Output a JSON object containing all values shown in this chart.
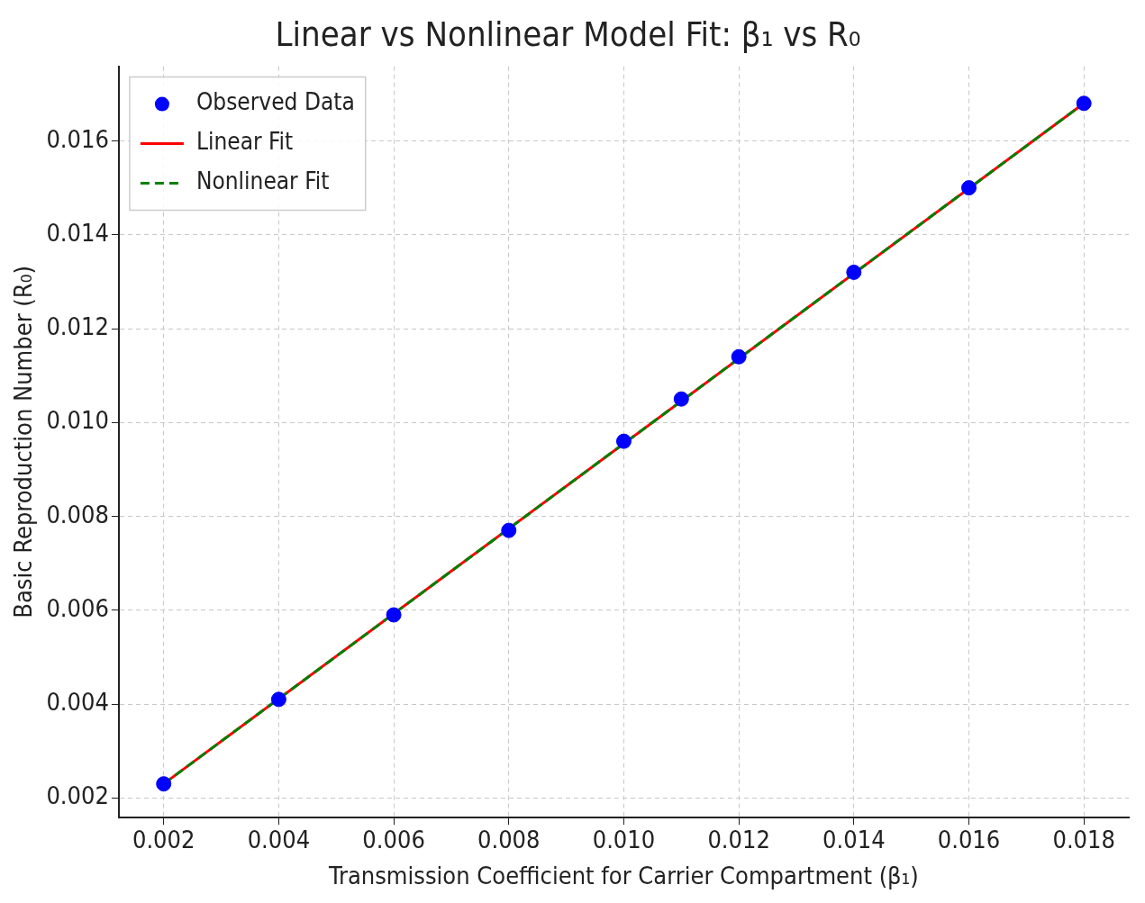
{
  "chart_data": {
    "type": "scatter",
    "title": "Linear vs Nonlinear Model Fit: β₁ vs R₀",
    "xlabel": "Transmission Coefficient for Carrier Compartment (β₁)",
    "ylabel": "Basic Reproduction Number (R₀)",
    "series": [
      {
        "name": "Observed Data",
        "color": "#0000ff",
        "marker": "circle",
        "x": [
          0.002,
          0.004,
          0.006,
          0.008,
          0.01,
          0.011,
          0.012,
          0.014,
          0.016,
          0.018
        ],
        "values": [
          0.0023,
          0.0041,
          0.0059,
          0.0077,
          0.0096,
          0.0105,
          0.0114,
          0.0132,
          0.015,
          0.0168
        ]
      },
      {
        "name": "Linear Fit",
        "type": "line",
        "color": "#ff0000",
        "line_style": "solid",
        "x": [
          0.002,
          0.018
        ],
        "values": [
          0.0023,
          0.0168
        ]
      },
      {
        "name": "Nonlinear Fit",
        "type": "line",
        "color": "#008000",
        "line_style": "dashed",
        "x": [
          0.002,
          0.018
        ],
        "values": [
          0.0023,
          0.0168
        ]
      }
    ],
    "xlim": [
      0.00122,
      0.01878
    ],
    "ylim": [
      0.00158,
      0.01759
    ],
    "xticks": [
      0.002,
      0.004,
      0.006,
      0.008,
      {
        "value": 0.01,
        "label": "0.010"
      },
      0.012,
      0.014,
      0.016,
      0.018
    ],
    "yticks": [
      0.002,
      0.004,
      0.006,
      0.008,
      {
        "value": 0.01,
        "label": "0.010"
      },
      0.012,
      0.014,
      0.016
    ],
    "grid": true,
    "legend": "top left"
  }
}
